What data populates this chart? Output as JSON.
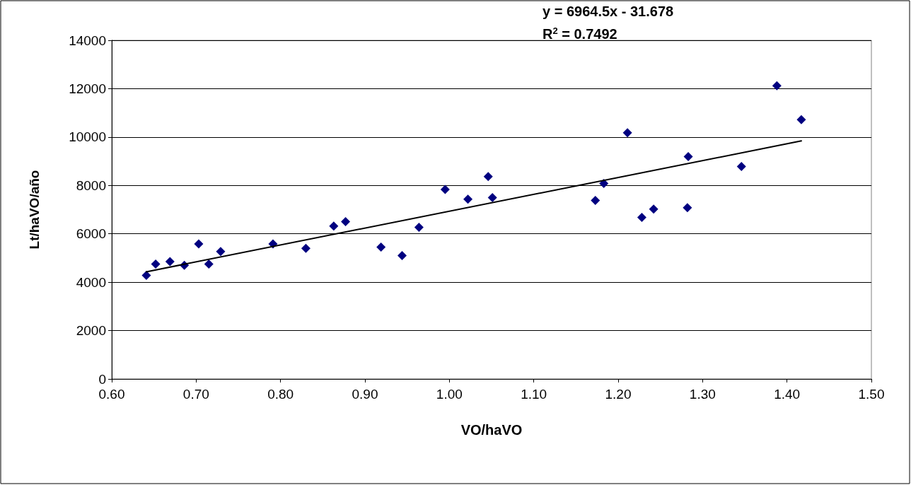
{
  "chart_data": {
    "type": "scatter",
    "xlabel": "VO/haVO",
    "ylabel": "Lt/haVO/año",
    "annotations": [
      "y = 6964.5x - 31.678",
      "R$^{2}$ = 0.7492"
    ],
    "series": [
      {
        "color": "#000080",
        "marker": "diamond",
        "x": [
          0.641,
          0.652,
          0.669,
          0.686,
          0.703,
          0.715,
          0.729,
          0.791,
          0.83,
          0.863,
          0.877,
          0.919,
          0.944,
          0.964,
          0.995,
          1.022,
          1.046,
          1.051,
          1.173,
          1.183,
          1.211,
          1.228,
          1.242,
          1.282,
          1.283,
          1.346,
          1.388,
          1.417
        ],
        "values": [
          4280,
          4750,
          4850,
          4700,
          5580,
          4750,
          5270,
          5580,
          5400,
          6320,
          6500,
          5450,
          5100,
          6270,
          7830,
          7430,
          8370,
          7500,
          7380,
          8080,
          10180,
          6680,
          7020,
          7080,
          9190,
          8780,
          12120,
          10720
        ]
      },
      {
        "type": "line",
        "color": "#000000",
        "marker": "none",
        "line_style": "solid",
        "x": [
          0.641,
          1.417
        ],
        "values": [
          4430,
          9840
        ]
      }
    ],
    "xlim": [
      0.6,
      1.5
    ],
    "xticks": [
      {
        "value": 0.6,
        "label": "0.60"
      },
      {
        "value": 0.7,
        "label": "0.70"
      },
      {
        "value": 0.8,
        "label": "0.80"
      },
      {
        "value": 0.9,
        "label": "0.90"
      },
      {
        "value": 1.0,
        "label": "1.00"
      },
      {
        "value": 1.1,
        "label": "1.10"
      },
      {
        "value": 1.2,
        "label": "1.20"
      },
      {
        "value": 1.3,
        "label": "1.30"
      },
      {
        "value": 1.4,
        "label": "1.40"
      },
      {
        "value": 1.5,
        "label": "1.50"
      }
    ],
    "ylim": [
      0,
      14000
    ],
    "yticks": [
      0,
      2000,
      4000,
      6000,
      8000,
      10000,
      12000,
      14000
    ],
    "grid": "y"
  }
}
